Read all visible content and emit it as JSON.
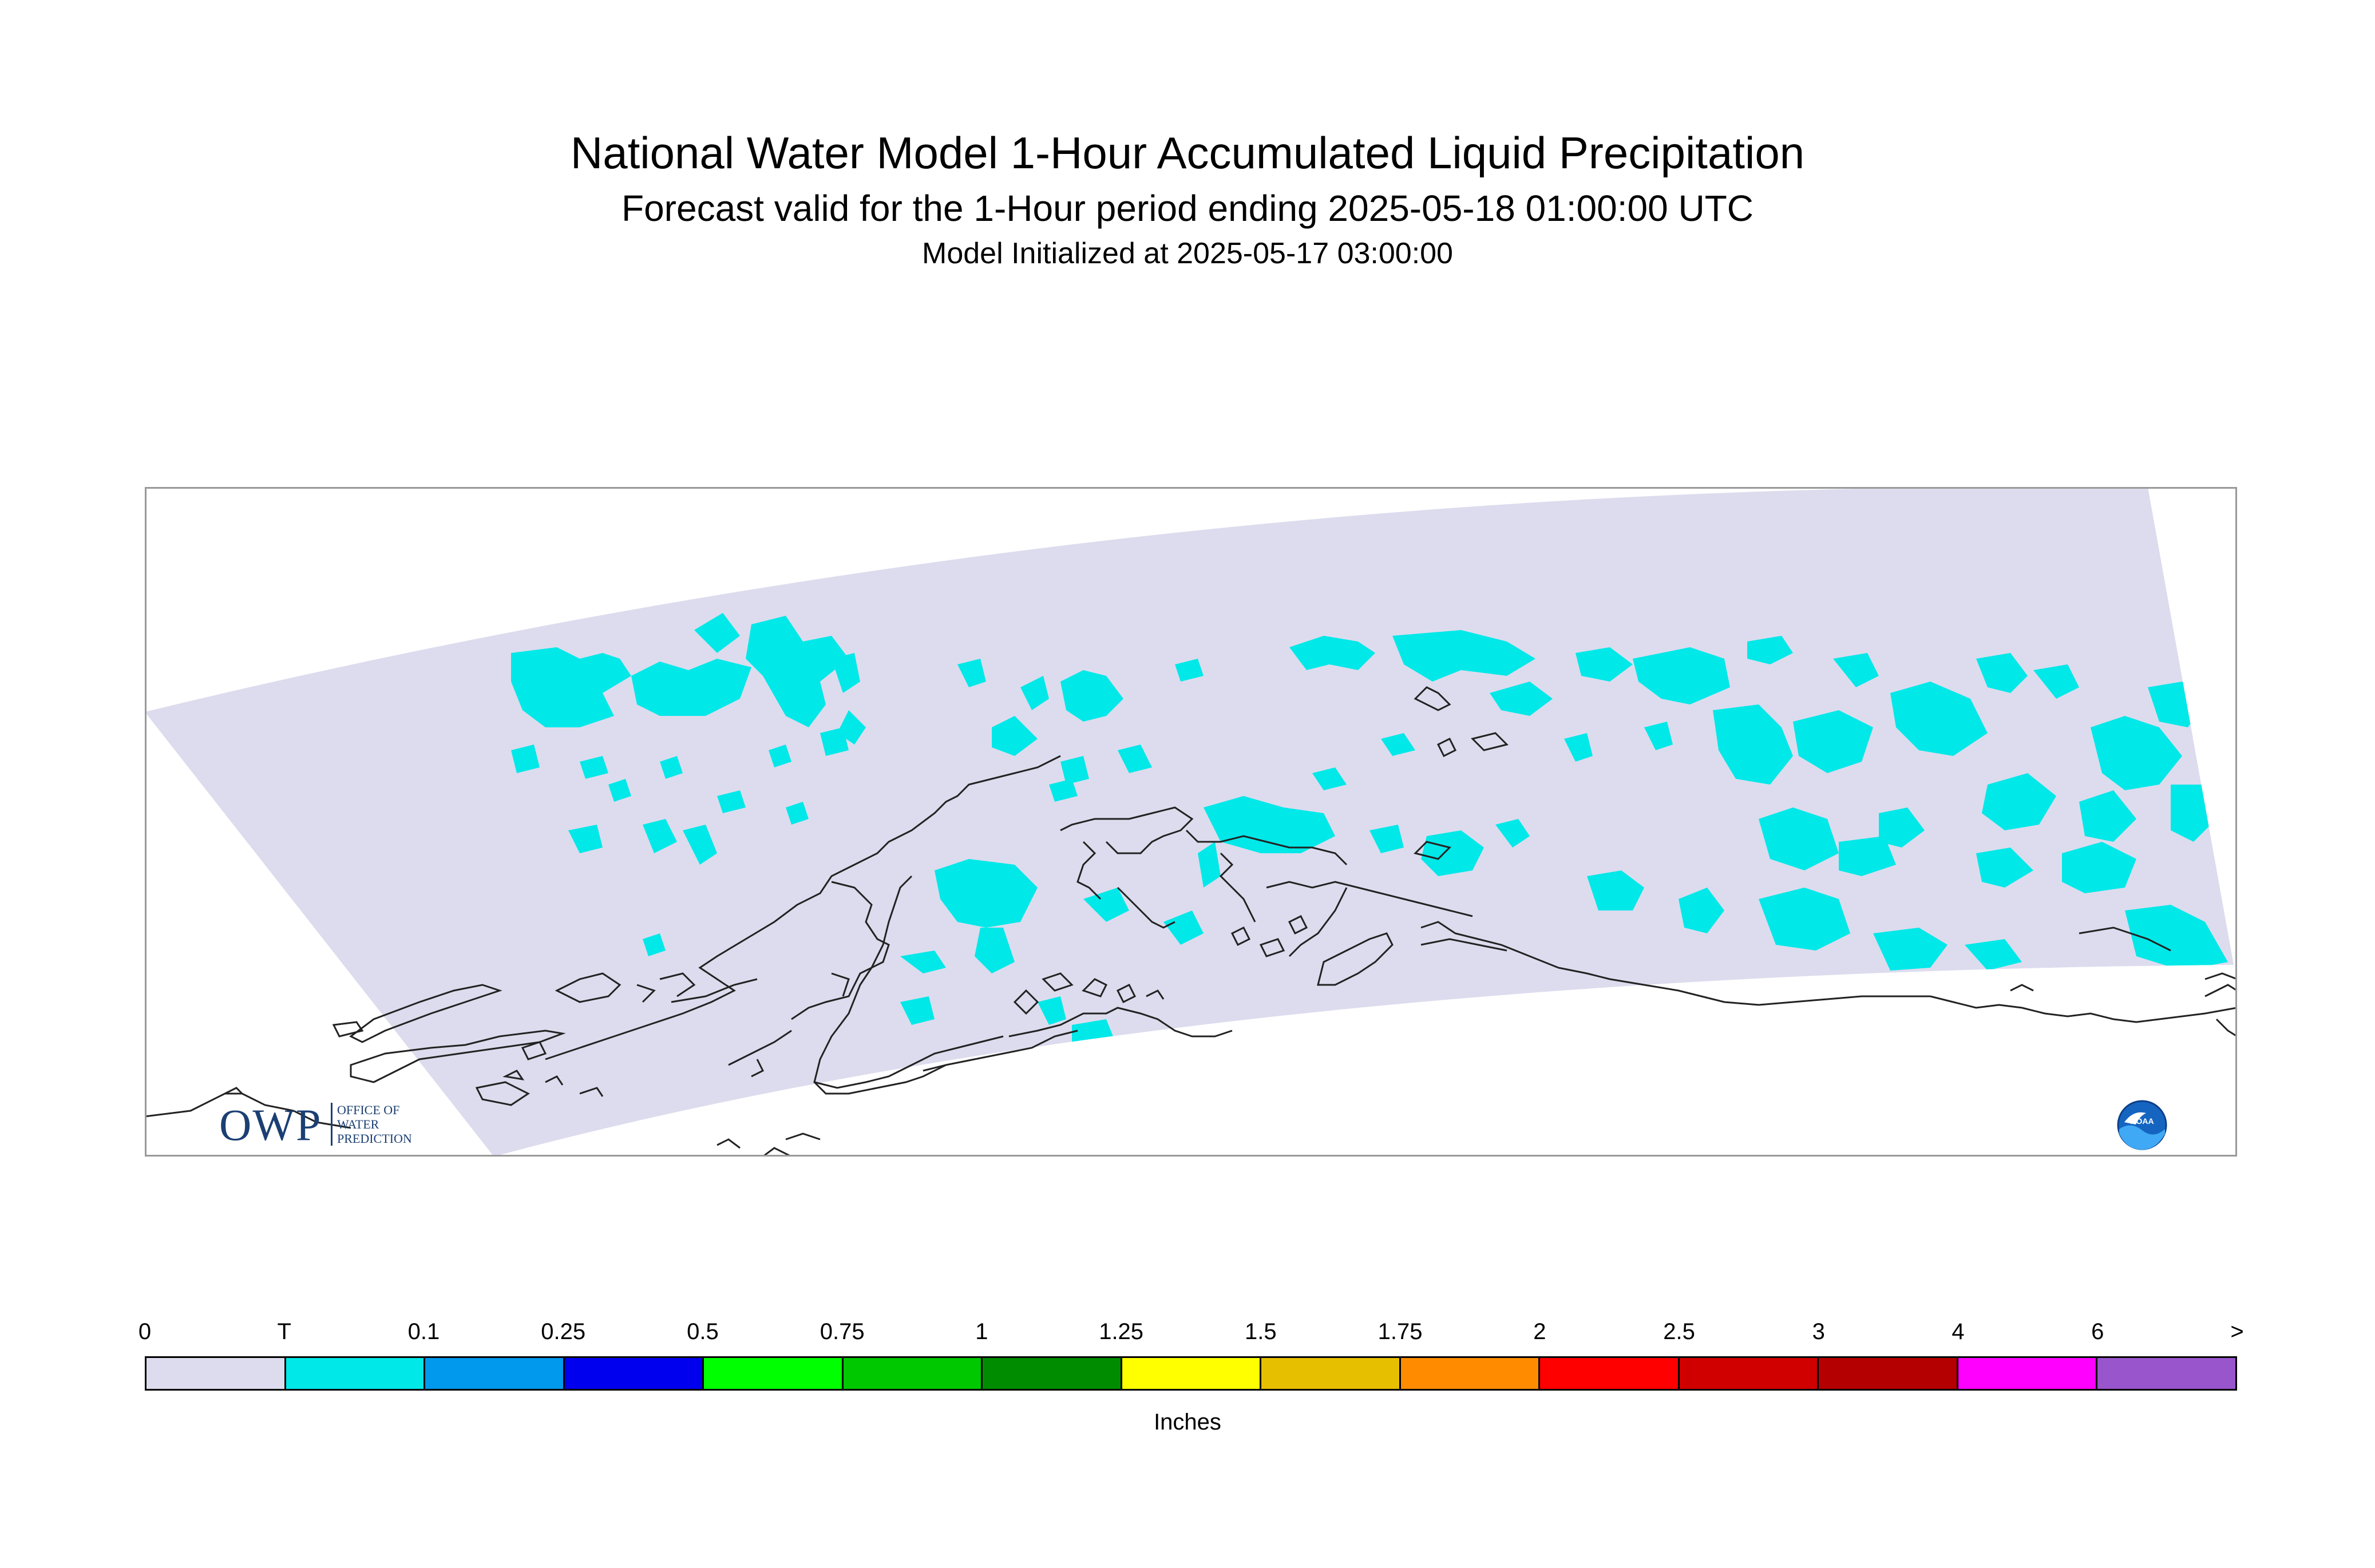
{
  "title": "National Water Model 1-Hour Accumulated Liquid Precipitation",
  "subtitle": "Forecast valid for the 1-Hour period ending 2025-05-18 01:00:00 UTC",
  "initialized": "Model Initialized at 2025-05-17 03:00:00",
  "logos": {
    "owp_letters": "OWP",
    "owp_sub_lines": [
      "OFFICE OF",
      "WATER",
      "PREDICTION"
    ],
    "noaa_text": "NOAA"
  },
  "legend": {
    "units": "Inches",
    "tick_labels": [
      "0",
      "T",
      "0.1",
      "0.25",
      "0.5",
      "0.75",
      "1",
      "1.25",
      "1.5",
      "1.75",
      "2",
      "2.5",
      "3",
      "4",
      "6",
      ">"
    ],
    "colors": [
      "#dcdcee",
      "#00e8e8",
      "#0099ee",
      "#0000ee",
      "#00ff00",
      "#00c800",
      "#008c00",
      "#ffff00",
      "#e6bf00",
      "#ff8c00",
      "#ff0000",
      "#d10000",
      "#b40000",
      "#ff00ff",
      "#9955cc"
    ]
  },
  "map_colors": {
    "domain_fill": "#dcdcee",
    "trace_fill": "#00e8e8",
    "coastline": "#222222",
    "frame": "#999999"
  }
}
